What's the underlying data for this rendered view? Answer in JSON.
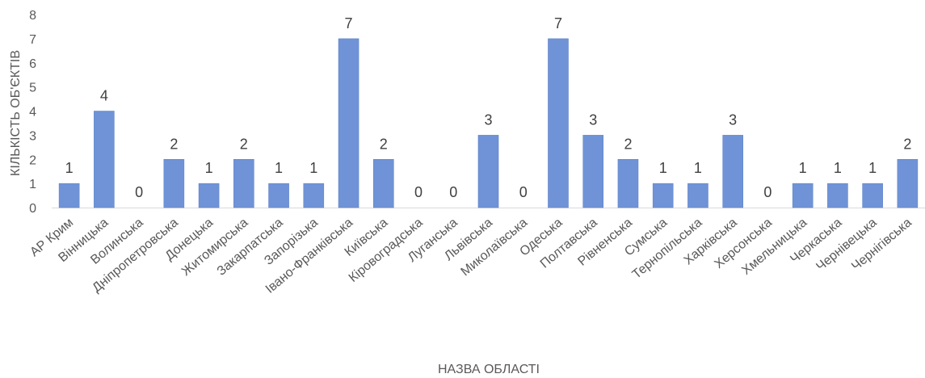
{
  "chart_data": {
    "type": "bar",
    "categories": [
      "АР Крим",
      "Вінницька",
      "Волинська",
      "Дніпропетровська",
      "Донецька",
      "Житомирська",
      "Закарпатська",
      "Запорізька",
      "Івано-Франківська",
      "Київська",
      "Кіровоградська",
      "Луганська",
      "Львівська",
      "Миколаївська",
      "Одеська",
      "Полтавська",
      "Рівненська",
      "Сумська",
      "Тернопільська",
      "Харківська",
      "Херсонська",
      "Хмельницька",
      "Черкаська",
      "Чернівецька",
      "Чернігівська"
    ],
    "values": [
      1,
      4,
      0,
      2,
      1,
      2,
      1,
      1,
      7,
      2,
      0,
      0,
      3,
      0,
      7,
      3,
      2,
      1,
      1,
      3,
      0,
      1,
      1,
      1,
      2
    ],
    "xlabel": "НАЗВА ОБЛАСТІ",
    "ylabel": "КІЛЬКІСТЬ ОБ'ЄКТІВ",
    "ylim": [
      0,
      8
    ],
    "yticks": [
      "0",
      "1",
      "2",
      "3",
      "4",
      "5",
      "6",
      "7",
      "8"
    ],
    "grid": false,
    "bar_color": "#6f93d6"
  }
}
